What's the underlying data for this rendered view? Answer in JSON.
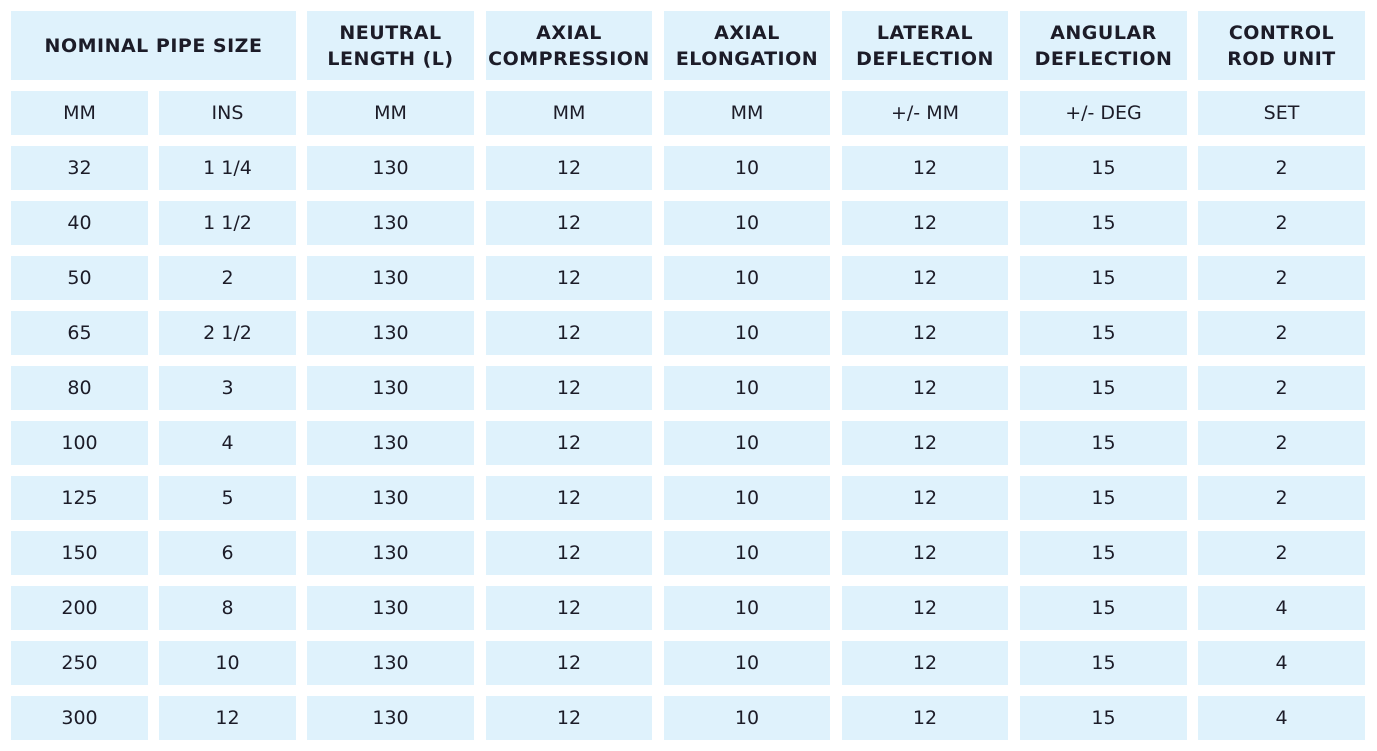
{
  "table": {
    "header": [
      [
        "NOMINAL PIPE SIZE"
      ],
      [
        "NEUTRAL",
        "LENGTH (L)"
      ],
      [
        "AXIAL",
        "COMPRESSION"
      ],
      [
        "AXIAL",
        "ELONGATION"
      ],
      [
        "LATERAL",
        "DEFLECTION"
      ],
      [
        "ANGULAR",
        "DEFLECTION"
      ],
      [
        "CONTROL",
        "ROD UNIT"
      ]
    ],
    "units": [
      "MM",
      "INS",
      "MM",
      "MM",
      "MM",
      "+/- MM",
      "+/- DEG",
      "SET"
    ],
    "rows": [
      [
        "32",
        "1 1/4",
        "130",
        "12",
        "10",
        "12",
        "15",
        "2"
      ],
      [
        "40",
        "1 1/2",
        "130",
        "12",
        "10",
        "12",
        "15",
        "2"
      ],
      [
        "50",
        "2",
        "130",
        "12",
        "10",
        "12",
        "15",
        "2"
      ],
      [
        "65",
        "2 1/2",
        "130",
        "12",
        "10",
        "12",
        "15",
        "2"
      ],
      [
        "80",
        "3",
        "130",
        "12",
        "10",
        "12",
        "15",
        "2"
      ],
      [
        "100",
        "4",
        "130",
        "12",
        "10",
        "12",
        "15",
        "2"
      ],
      [
        "125",
        "5",
        "130",
        "12",
        "10",
        "12",
        "15",
        "2"
      ],
      [
        "150",
        "6",
        "130",
        "12",
        "10",
        "12",
        "15",
        "2"
      ],
      [
        "200",
        "8",
        "130",
        "12",
        "10",
        "12",
        "15",
        "4"
      ],
      [
        "250",
        "10",
        "130",
        "12",
        "10",
        "12",
        "15",
        "4"
      ],
      [
        "300",
        "12",
        "130",
        "12",
        "10",
        "12",
        "15",
        "4"
      ]
    ]
  }
}
